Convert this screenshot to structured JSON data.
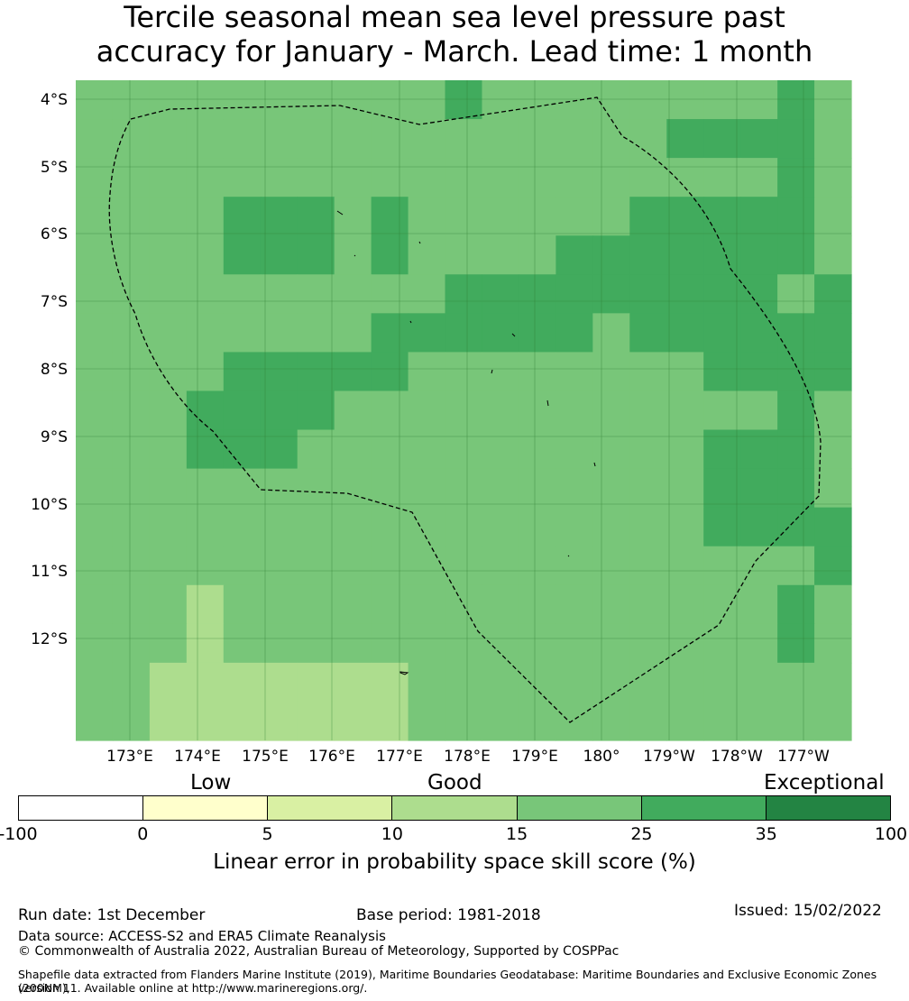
{
  "title": {
    "line1": "Tercile seasonal mean sea level pressure past",
    "line2": "accuracy for January - March. Lead time: 1 month"
  },
  "map": {
    "lat_labels": [
      "4°S",
      "5°S",
      "6°S",
      "7°S",
      "8°S",
      "9°S",
      "10°S",
      "11°S",
      "12°S"
    ],
    "lon_labels": [
      "173°E",
      "174°E",
      "175°E",
      "176°E",
      "177°E",
      "178°E",
      "179°E",
      "180°",
      "179°W",
      "178°W",
      "177°W"
    ],
    "grid_rows": [
      "3333333333C33333333C4",
      "3333333333333333CCCC4",
      "3333333333333333333C4",
      "3333CCC3C333333CCCCC4",
      "3333CCC3C3333CCCCCCC4",
      "3333333333CCCCCCCCC3C",
      "33333333CCCCCC3CCCCCC",
      "3333CCCCC33333333CCCC",
      "333CCCC333333333333C4",
      "333CCC33333333333CCC4",
      "33333333333333333CCC4",
      "33333333333333333CCCC",
      "33333333333333333333C",
      "3332333333333333333C4",
      "3332333333333333333C4",
      "332222222333333333333",
      "332222222333333333333"
    ],
    "cell_colors": {
      "3": "#78c679",
      "C": "#41ab5d",
      "2": "#addd8e"
    },
    "grid_line_color": "#2e7d32",
    "eez_line_color": "#000000"
  },
  "colorbar": {
    "categories": [
      "Low",
      "Good",
      "Exceptional"
    ],
    "ticks": [
      "-100",
      "0",
      "5",
      "10",
      "15",
      "25",
      "35",
      "100"
    ],
    "colors": [
      "#ffffff",
      "#ffffcc",
      "#d9f0a3",
      "#addd8e",
      "#78c679",
      "#41ab5d",
      "#238443"
    ],
    "label": "Linear error in probability space skill score (%)"
  },
  "footer": {
    "run_date": "Run date: 1st December",
    "base_period": "Base period: 1981-2018",
    "issued": "Issued: 15/02/2022",
    "data_source": "Data source: ACCESS-S2 and ERA5 Climate Reanalysis",
    "copyright": "© Commonwealth of Australia 2022, Australian Bureau of Meteorology, Supported by COSPPac",
    "shapefile_line1": "Shapefile data extracted from Flanders Marine Institute (2019), Maritime Boundaries Geodatabase: Maritime Boundaries and Exclusive Economic Zones (200NM),",
    "shapefile_line2": "version 11. Available online at http://www.marineregions.org/."
  }
}
